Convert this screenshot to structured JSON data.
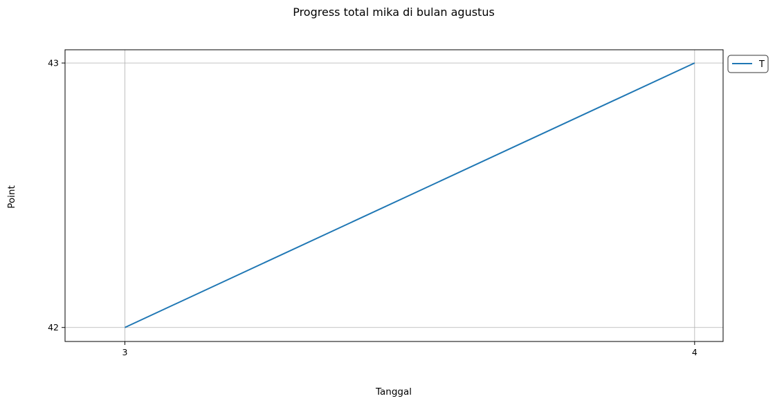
{
  "chart_data": {
    "type": "line",
    "title": "Progress total mika di bulan agustus",
    "xlabel": "Tanggal",
    "ylabel": "Point",
    "x": [
      3,
      4
    ],
    "xticks": [
      "3",
      "4"
    ],
    "yticks": [
      "42",
      "43"
    ],
    "series": [
      {
        "name": "T",
        "x": [
          3,
          4
        ],
        "values": [
          42,
          43
        ],
        "color": "#1f77b4"
      }
    ],
    "xlim": [
      2.895,
      4.05
    ],
    "ylim": [
      41.947,
      43.05
    ],
    "grid": true,
    "legend": "outside-top-right"
  }
}
